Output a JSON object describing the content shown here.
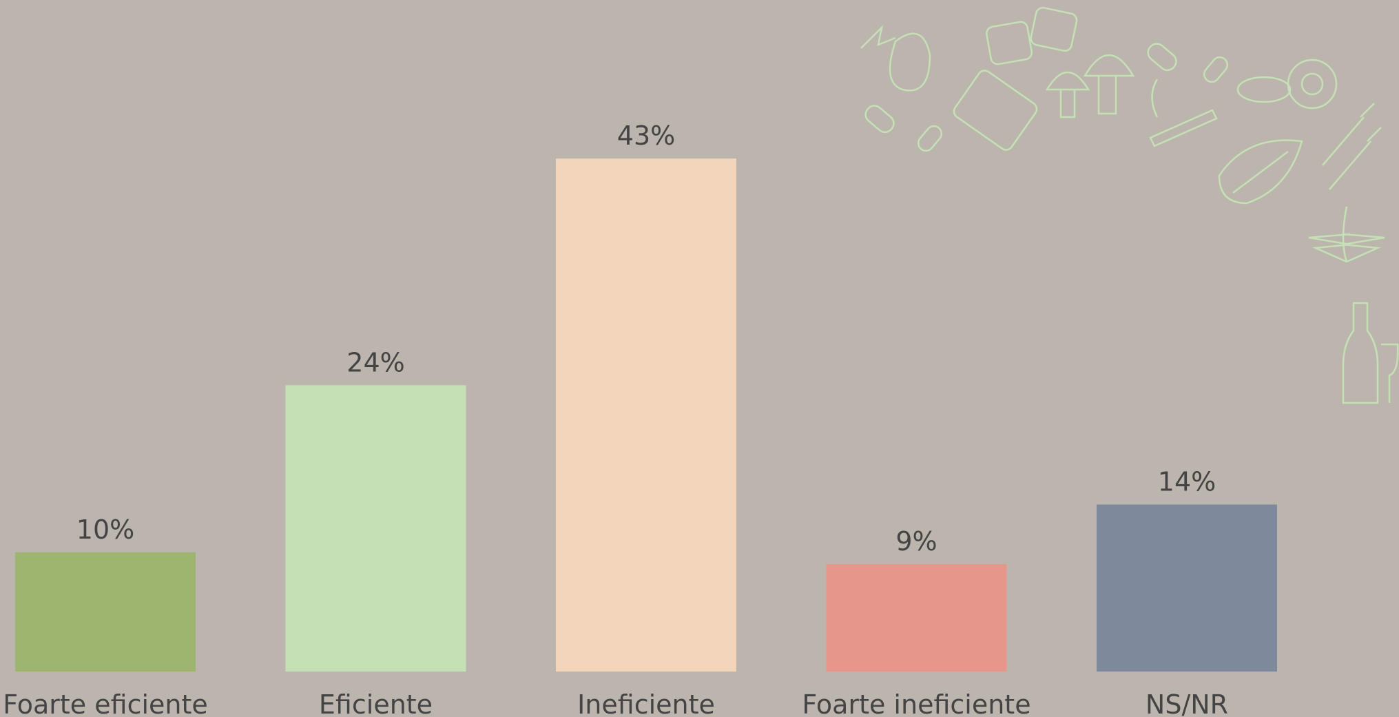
{
  "chart_data": {
    "type": "bar",
    "categories": [
      "Foarte eficiente",
      "Eficiente",
      "Ineficiente",
      "Foarte ineficiente",
      "NS/NR"
    ],
    "values": [
      10,
      24,
      43,
      9,
      14
    ],
    "value_labels": [
      "10%",
      "24%",
      "43%",
      "9%",
      "14%"
    ],
    "colors": [
      "#9db56e",
      "#c6e0b6",
      "#f3d5bb",
      "#e6968a",
      "#7e8a9b"
    ]
  }
}
